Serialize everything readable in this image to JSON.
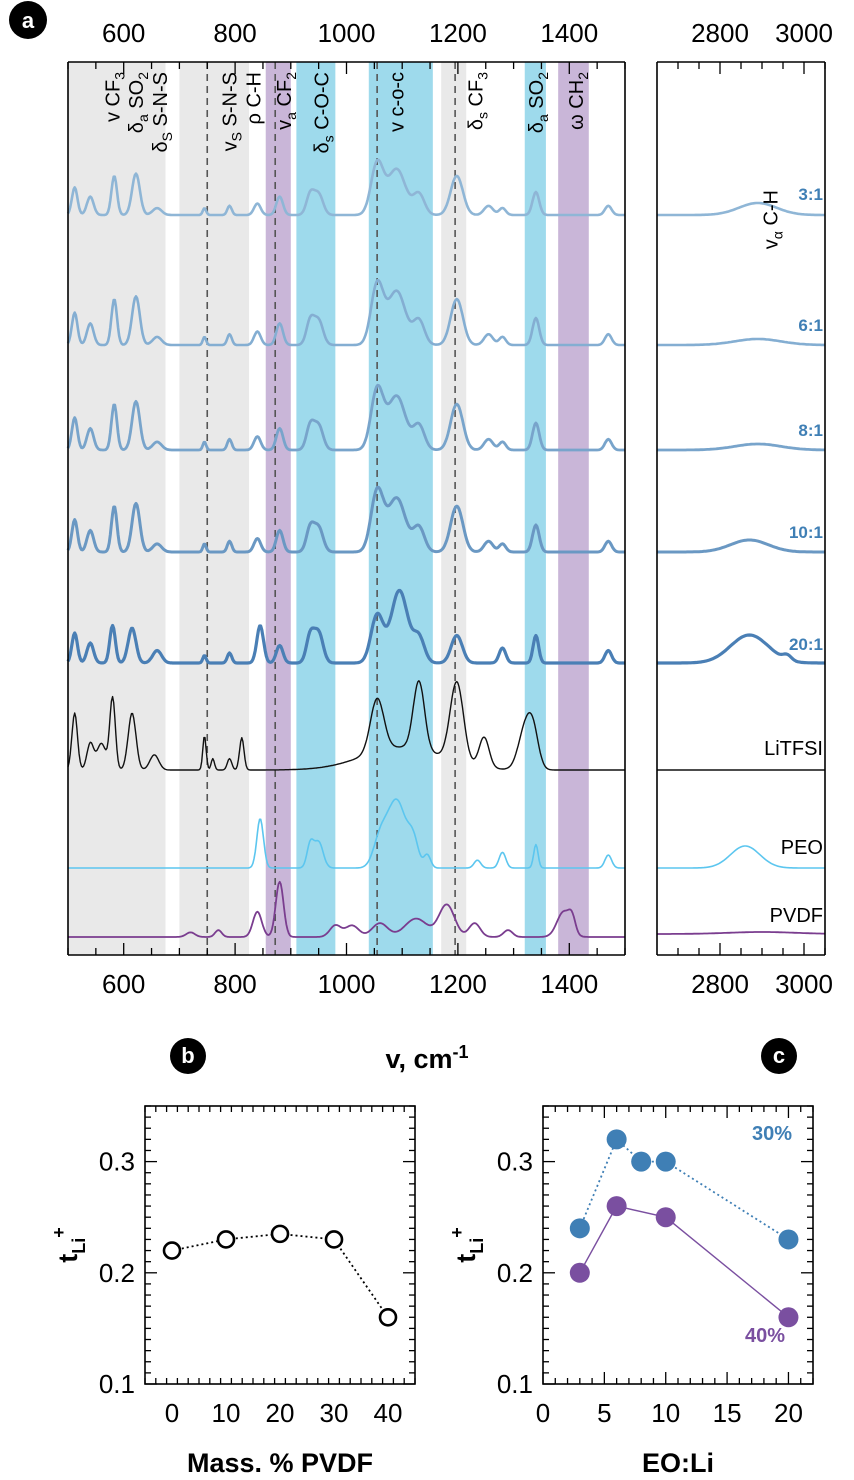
{
  "chart_data": [
    {
      "panel": "a",
      "type": "line",
      "xlabel": "v, cm-1",
      "xlabel_base": "v, cm",
      "xlabel_sup": "-1",
      "x_ticks_main": [
        600,
        800,
        1000,
        1200,
        1400
      ],
      "x_ticks_ch": [
        2800,
        3000
      ],
      "xlim_main": [
        500,
        1500
      ],
      "xlim_ch": [
        2650,
        3050
      ],
      "bands": [
        {
          "label": "v CF3",
          "base": "v CF",
          "sub": "3",
          "x": 580
        },
        {
          "label": "δa SO2",
          "base": "δ",
          "sub": "a",
          "rest": " SO",
          "sub2": "2",
          "x": 622
        },
        {
          "label": "δS S-N-S",
          "base": "δ",
          "sub": "S",
          "rest": " S-N-S",
          "x": 665
        },
        {
          "label": "vS S-N-S",
          "base": "v",
          "sub": "S",
          "rest": " S-N-S",
          "x": 790
        },
        {
          "label": "ρ C-H",
          "base": "ρ C-H",
          "x": 833
        },
        {
          "label": "va CF2",
          "base": "v",
          "sub": "a",
          "rest": " CF",
          "sub2": "2",
          "x": 888
        },
        {
          "label": "δs C-O-C",
          "base": "δ",
          "sub": "s",
          "rest": " C-O-C",
          "x": 955
        },
        {
          "label": "v c-o-c",
          "base": "v c-o-c",
          "x": 1090,
          "small": true
        },
        {
          "label": "δs CF3",
          "base": "δ",
          "sub": "s",
          "rest": " CF",
          "sub2": "3",
          "x": 1232
        },
        {
          "label": "δa SO2",
          "base": "δ",
          "sub": "a",
          "rest": " SO",
          "sub2": "2",
          "x": 1340
        },
        {
          "label": "ω CH2",
          "base": "ω CH",
          "sub2": "2",
          "x": 1412
        },
        {
          "label": "vα C-H",
          "base": "v",
          "sub": "α",
          "rest": " C-H",
          "x": 2920,
          "region": "ch"
        }
      ],
      "shaded_regions": [
        {
          "x0": 500,
          "x1": 675,
          "color": "#e9e9e9"
        },
        {
          "x0": 700,
          "x1": 825,
          "color": "#e9e9e9"
        },
        {
          "x0": 1170,
          "x1": 1215,
          "color": "#e9e9e9"
        },
        {
          "x0": 855,
          "x1": 900,
          "color": "#c9b6d8"
        },
        {
          "x0": 1380,
          "x1": 1435,
          "color": "#c9b6d8"
        },
        {
          "x0": 910,
          "x1": 980,
          "color": "#9edaec"
        },
        {
          "x0": 1040,
          "x1": 1155,
          "color": "#9edaec"
        },
        {
          "x0": 1320,
          "x1": 1358,
          "color": "#9edaec"
        }
      ],
      "dashed_lines": [
        750,
        872,
        1055,
        1195
      ],
      "series": [
        {
          "name": "3:1",
          "color": "#8fb6d6",
          "label_color": "#3f7fb5",
          "ch_label": true
        },
        {
          "name": "6:1",
          "color": "#84aed2",
          "label_color": "#3f7fb5",
          "ch_label": true
        },
        {
          "name": "8:1",
          "color": "#78a4cb",
          "label_color": "#3f7fb5",
          "ch_label": true
        },
        {
          "name": "10:1",
          "color": "#6a98c3",
          "label_color": "#3f7fb5",
          "ch_label": true
        },
        {
          "name": "20:1",
          "color": "#4a7fb5",
          "label_color": "#3f7fb5",
          "ch_label": true
        },
        {
          "name": "LiTFSI",
          "color": "#111111",
          "label_color": "#000000"
        },
        {
          "name": "PEO",
          "color": "#5cc6ef",
          "label_color": "#000000"
        },
        {
          "name": "PVDF",
          "color": "#7a3d8f",
          "label_color": "#000000"
        }
      ]
    },
    {
      "panel": "b",
      "type": "scatter",
      "xlabel": "Mass. % PVDF",
      "ylabel": "tLi+",
      "ylabel_base": "t",
      "ylabel_sub": "Li",
      "ylabel_sup": "+",
      "xlim": [
        -5,
        45
      ],
      "ylim": [
        0.1,
        0.35
      ],
      "x_ticks": [
        0,
        10,
        20,
        30,
        40
      ],
      "y_ticks": [
        0.1,
        0.2,
        0.3
      ],
      "y_tick_labels": [
        "0.1",
        "0.2",
        "0.3"
      ],
      "series": [
        {
          "x": [
            0,
            10,
            20,
            30,
            40
          ],
          "y": [
            0.22,
            0.23,
            0.235,
            0.23,
            0.16
          ],
          "marker": "open-circle",
          "line": "dotted",
          "color": "#000000"
        }
      ]
    },
    {
      "panel": "c",
      "type": "scatter",
      "xlabel": "EO:Li",
      "ylabel": "tLi+",
      "ylabel_base": "t",
      "ylabel_sub": "Li",
      "ylabel_sup": "+",
      "xlim": [
        0,
        22
      ],
      "ylim": [
        0.1,
        0.35
      ],
      "x_ticks": [
        0,
        5,
        10,
        15,
        20
      ],
      "y_ticks": [
        0.1,
        0.2,
        0.3
      ],
      "y_tick_labels": [
        "0.1",
        "0.2",
        "0.3"
      ],
      "series": [
        {
          "name": "30%",
          "x": [
            3,
            6,
            8,
            10,
            20
          ],
          "y": [
            0.24,
            0.32,
            0.3,
            0.3,
            0.23
          ],
          "color": "#3f7fb5",
          "line": "dotted",
          "marker": "filled-circle"
        },
        {
          "name": "40%",
          "x": [
            3,
            6,
            10,
            20
          ],
          "y": [
            0.2,
            0.26,
            0.25,
            0.16
          ],
          "color": "#7a4fa0",
          "line": "solid",
          "marker": "filled-circle"
        }
      ]
    }
  ]
}
